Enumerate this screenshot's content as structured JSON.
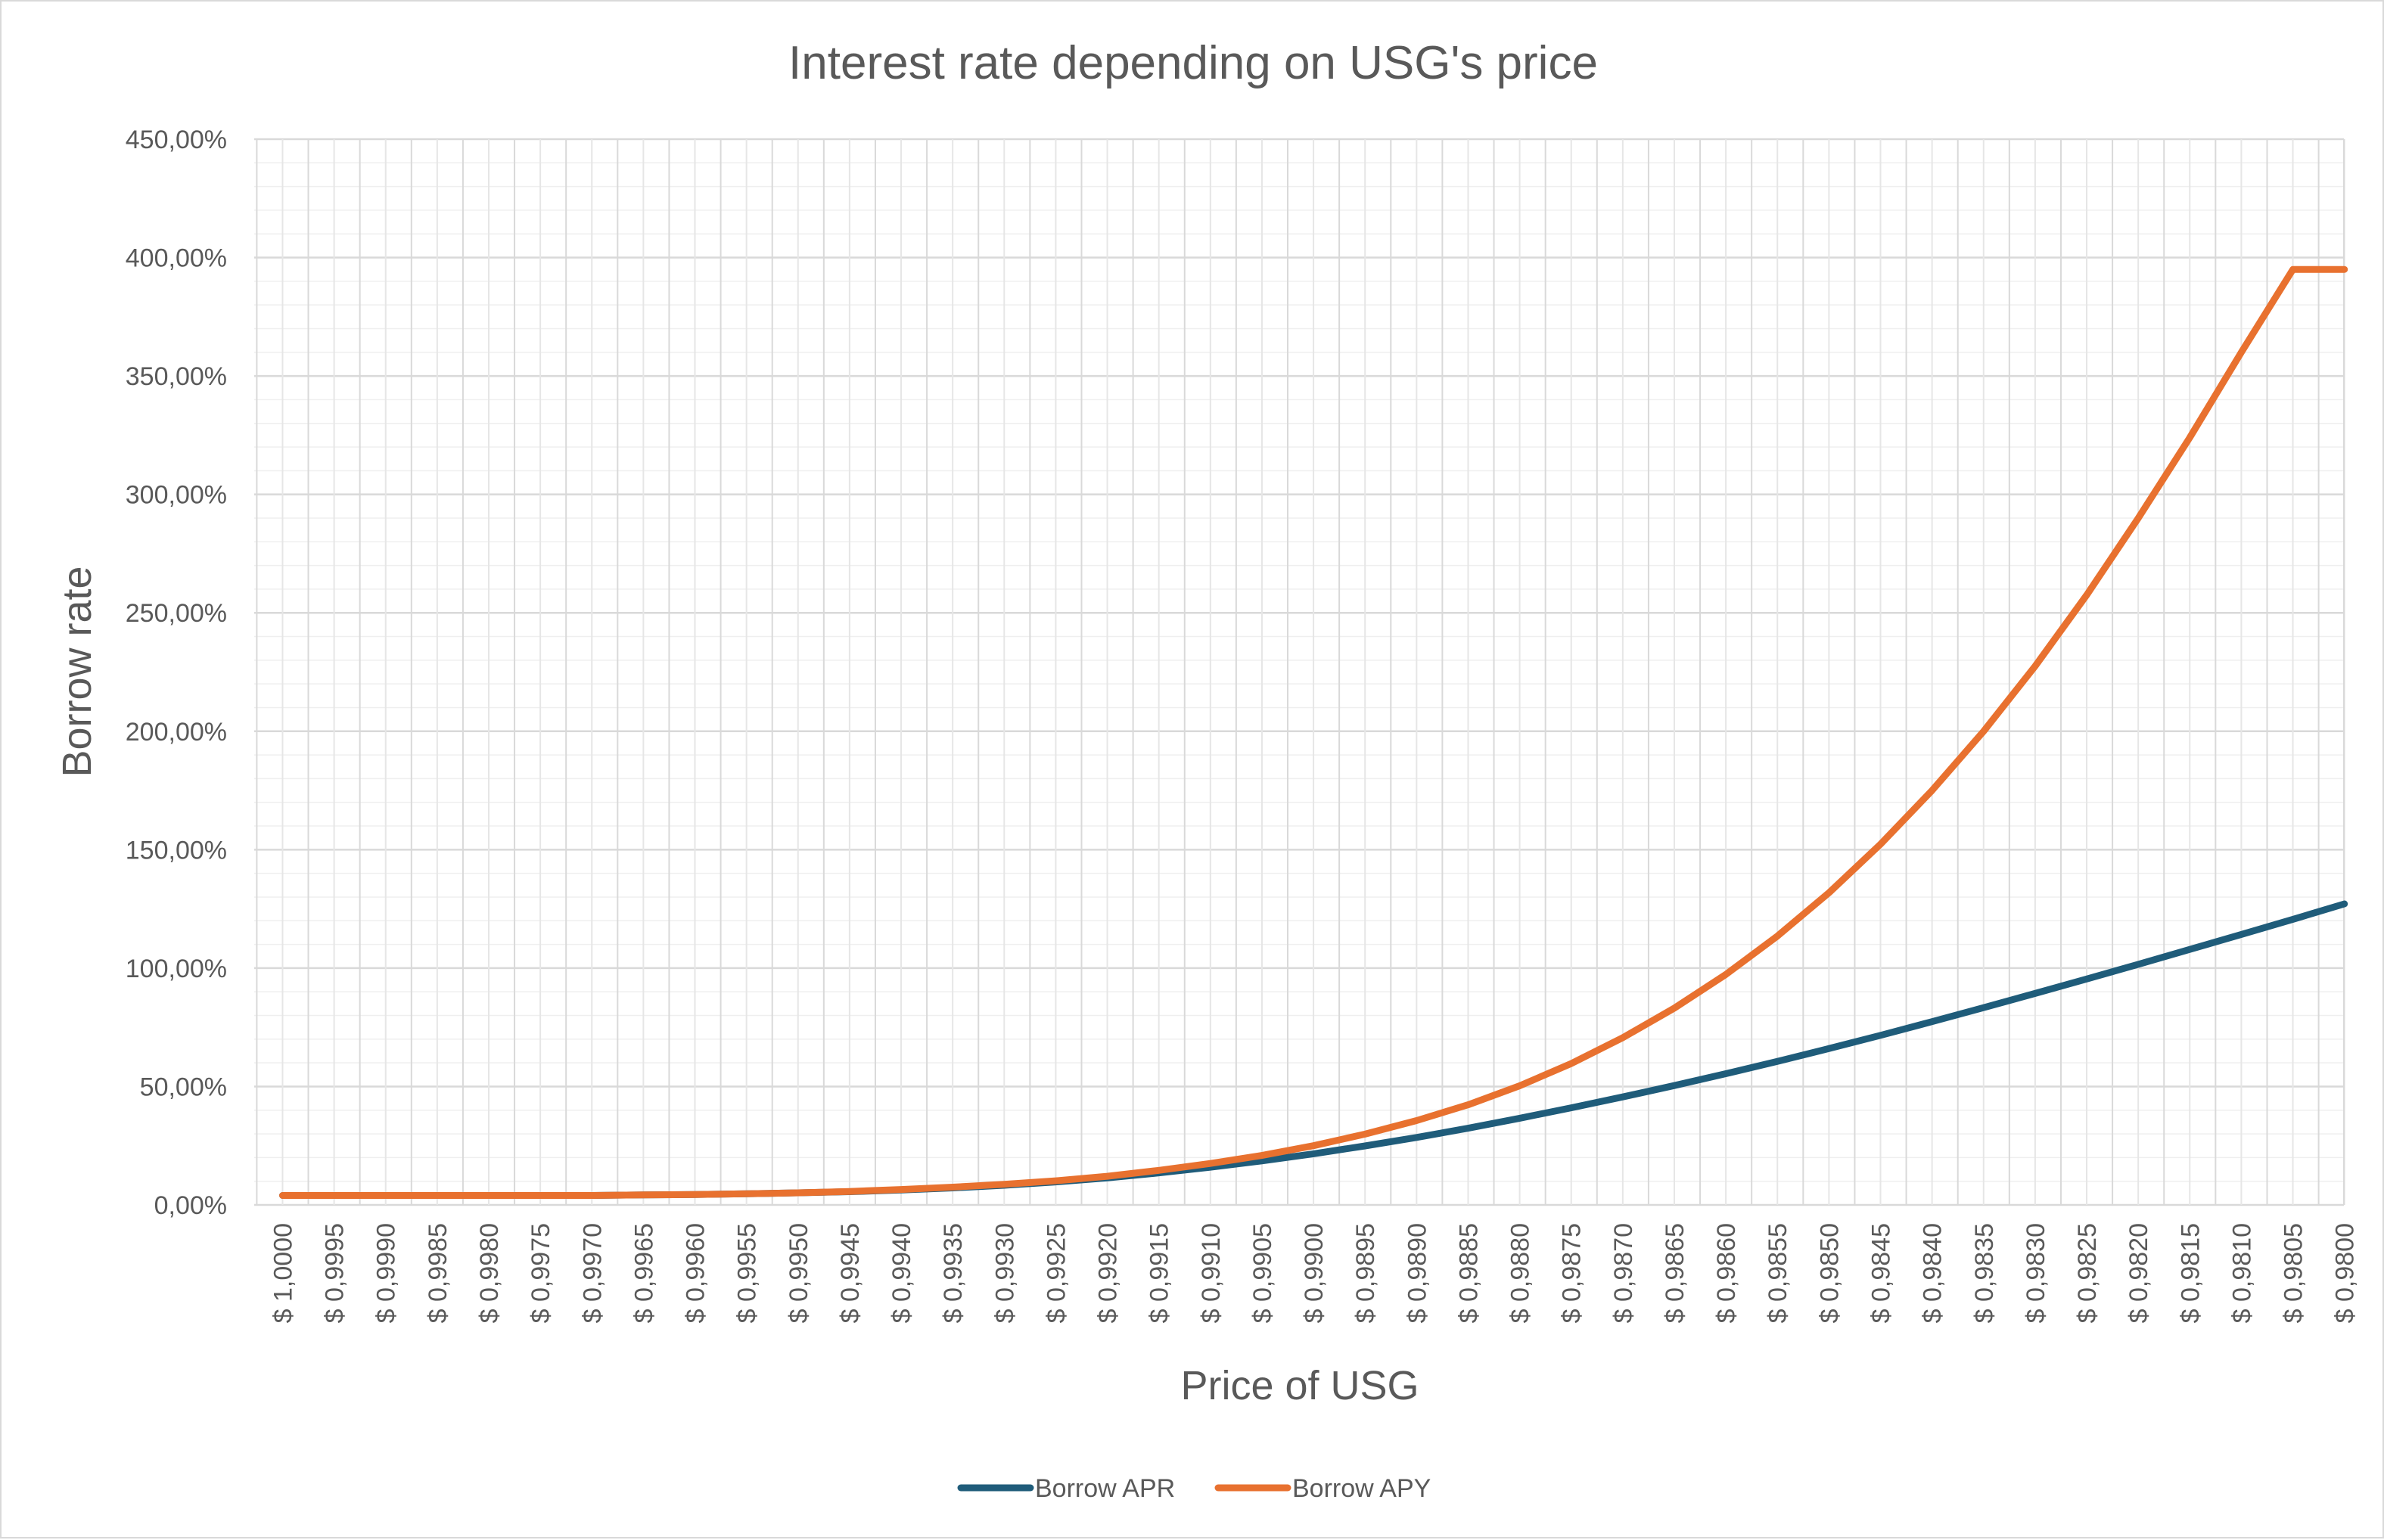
{
  "chart_data": {
    "type": "line",
    "title": "Interest rate depending on USG's price",
    "xlabel": "Price of USG",
    "ylabel": "Borrow rate",
    "x": [
      "$ 1,0000",
      "$ 0,9995",
      "$ 0,9990",
      "$ 0,9985",
      "$ 0,9980",
      "$ 0,9975",
      "$ 0,9970",
      "$ 0,9965",
      "$ 0,9960",
      "$ 0,9955",
      "$ 0,9950",
      "$ 0,9945",
      "$ 0,9940",
      "$ 0,9935",
      "$ 0,9930",
      "$ 0,9925",
      "$ 0,9920",
      "$ 0,9915",
      "$ 0,9910",
      "$ 0,9905",
      "$ 0,9900",
      "$ 0,9895",
      "$ 0,9890",
      "$ 0,9885",
      "$ 0,9880",
      "$ 0,9875",
      "$ 0,9870",
      "$ 0,9865",
      "$ 0,9860",
      "$ 0,9855",
      "$ 0,9850",
      "$ 0,9845",
      "$ 0,9840",
      "$ 0,9835",
      "$ 0,9830",
      "$ 0,9825",
      "$ 0,9820",
      "$ 0,9815",
      "$ 0,9810",
      "$ 0,9805",
      "$ 0,9800"
    ],
    "yticks": [
      "0,00%",
      "50,00%",
      "100,00%",
      "150,00%",
      "200,00%",
      "250,00%",
      "300,00%",
      "350,00%",
      "400,00%",
      "450,00%"
    ],
    "ylim": [
      0,
      450
    ],
    "grid": true,
    "legend_position": "bottom",
    "series": [
      {
        "name": "Borrow APR",
        "color": "#1f5c7a",
        "values": [
          4,
          4,
          4,
          4,
          4,
          4,
          4,
          4.2,
          4.4,
          4.7,
          5.1,
          5.6,
          6.3,
          7.2,
          8.3,
          9.7,
          11.4,
          13.5,
          15.9,
          18.6,
          21.6,
          24.9,
          28.5,
          32.4,
          36.6,
          41,
          45.6,
          50.4,
          55.4,
          60.6,
          66,
          71.6,
          77.4,
          83.3,
          89.3,
          95.4,
          101.6,
          107.9,
          114.2,
          120.6,
          127.1
        ]
      },
      {
        "name": "Borrow APY",
        "color": "#e8712f",
        "values": [
          4,
          4,
          4,
          4,
          4,
          4,
          4,
          4.2,
          4.4,
          4.7,
          5.1,
          5.7,
          6.5,
          7.5,
          8.7,
          10.2,
          12.1,
          14.6,
          17.5,
          20.9,
          25,
          29.9,
          35.6,
          42.3,
          50.3,
          59.7,
          70.6,
          83.1,
          97.3,
          113.5,
          131.8,
          152.3,
          175,
          200,
          227.5,
          257.5,
          290,
          324,
          360,
          395,
          395
        ]
      }
    ]
  }
}
